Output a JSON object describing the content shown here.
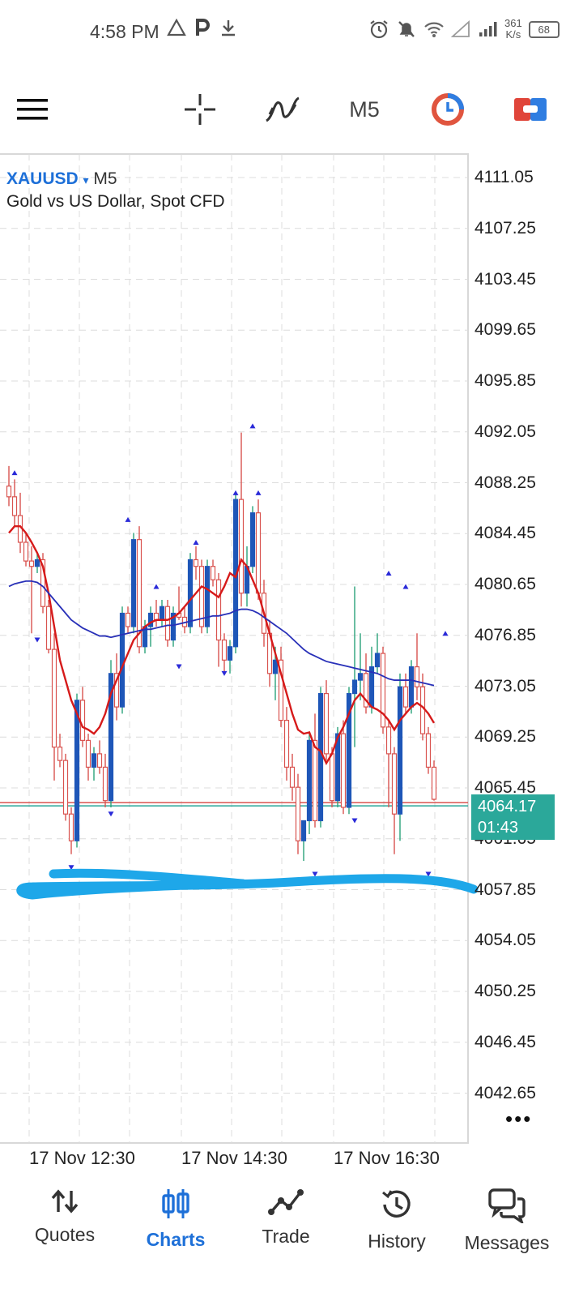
{
  "status_bar": {
    "time": "4:58 PM",
    "icons_left": [
      "warning-triangle-icon",
      "p-letter-icon",
      "download-icon"
    ],
    "icons_right": [
      "alarm-icon",
      "muted-bell-icon",
      "wifi-icon",
      "no-signal-icon",
      "signal-icon"
    ],
    "speed_value": "361",
    "speed_unit": "K/s",
    "battery": "68"
  },
  "toolbar": {
    "menu_icon": "hamburger-menu-icon",
    "crosshair_icon": "crosshair-icon",
    "indicators_icon": "indicators-icon",
    "timeframe": "M5",
    "objects_icon": "clock-objects-icon",
    "trade_icon": "one-click-trade-icon"
  },
  "chart": {
    "symbol": "XAUUSD",
    "symbol_dropdown": "▾",
    "timeframe": "M5",
    "description": "Gold vs US Dollar, Spot CFD",
    "price_labels": [
      "4111.05",
      "4107.25",
      "4103.45",
      "4099.65",
      "4095.85",
      "4092.05",
      "4088.25",
      "4084.45",
      "4080.65",
      "4076.85",
      "4073.05",
      "4069.25",
      "4065.45",
      "4061.65",
      "4057.85",
      "4054.05",
      "4050.25",
      "4046.45",
      "4042.65"
    ],
    "time_labels": [
      "17 Nov 12:30",
      "17 Nov 14:30",
      "17 Nov 16:30"
    ],
    "current_price": "4064.17",
    "countdown": "01:43",
    "more_icon": "more-dots-icon",
    "colors": {
      "bull": "#1e56b8",
      "bear": "#d9534f",
      "fast_ma": "#d61a1a",
      "slow_ma": "#2830b8",
      "current_box": "#2ba89a",
      "annotation": "#1ea7e9",
      "arrow": "#2a2ad8"
    }
  },
  "chart_data": {
    "type": "candlestick",
    "y_range": [
      4040.75,
      4112.95
    ],
    "y_ticks": [
      4111.05,
      4107.25,
      4103.45,
      4099.65,
      4095.85,
      4092.05,
      4088.25,
      4084.45,
      4080.65,
      4076.85,
      4073.05,
      4069.25,
      4065.45,
      4061.65,
      4057.85,
      4054.05,
      4050.25,
      4046.45,
      4042.65
    ],
    "x_tick_labels": [
      "17 Nov 12:30",
      "17 Nov 14:30",
      "17 Nov 16:30"
    ],
    "current_price": 4064.17,
    "candles": [
      [
        4088.0,
        4089.5,
        4086.5,
        4087.2
      ],
      [
        4087.2,
        4088.5,
        4085.0,
        4085.8
      ],
      [
        4085.8,
        4087.5,
        4083.0,
        4083.8
      ],
      [
        4083.8,
        4084.5,
        4082.0,
        4082.4
      ],
      [
        4082.4,
        4083.5,
        4077.0,
        4082.0
      ],
      [
        4082.0,
        4083.0,
        4081.5,
        4082.5
      ],
      [
        4082.5,
        4083.0,
        4078.5,
        4079.0
      ],
      [
        4079.0,
        4079.5,
        4075.5,
        4075.8
      ],
      [
        4075.8,
        4077.0,
        4066.0,
        4068.5
      ],
      [
        4068.5,
        4069.5,
        4067.0,
        4067.5
      ],
      [
        4067.5,
        4068.0,
        4063.0,
        4063.5
      ],
      [
        4063.5,
        4064.0,
        4060.5,
        4061.5
      ],
      [
        4061.5,
        4072.5,
        4061.0,
        4072.0
      ],
      [
        4072.0,
        4073.0,
        4068.5,
        4069.0
      ],
      [
        4069.0,
        4069.5,
        4066.0,
        4067.0
      ],
      [
        4067.0,
        4068.5,
        4066.0,
        4068.0
      ],
      [
        4068.0,
        4069.0,
        4066.5,
        4067.0
      ],
      [
        4067.0,
        4068.0,
        4064.0,
        4064.5
      ],
      [
        4064.5,
        4075.0,
        4064.0,
        4074.0
      ],
      [
        4074.0,
        4075.5,
        4070.5,
        4071.5
      ],
      [
        4071.5,
        4079.0,
        4071.0,
        4078.5
      ],
      [
        4078.5,
        4079.0,
        4077.0,
        4077.5
      ],
      [
        4077.5,
        4084.5,
        4077.0,
        4084.0
      ],
      [
        4084.0,
        4085.0,
        4075.5,
        4076.0
      ],
      [
        4076.0,
        4078.0,
        4075.5,
        4077.5
      ],
      [
        4077.5,
        4079.0,
        4076.0,
        4078.5
      ],
      [
        4078.5,
        4079.5,
        4077.5,
        4078.0
      ],
      [
        4078.0,
        4079.5,
        4077.5,
        4079.0
      ],
      [
        4079.0,
        4079.5,
        4076.0,
        4076.5
      ],
      [
        4076.5,
        4079.0,
        4076.0,
        4078.5
      ],
      [
        4078.5,
        4080.5,
        4078.0,
        4078.2
      ],
      [
        4078.2,
        4079.0,
        4077.0,
        4077.5
      ],
      [
        4077.5,
        4083.0,
        4077.0,
        4082.5
      ],
      [
        4082.5,
        4083.5,
        4081.0,
        4082.0
      ],
      [
        4082.0,
        4082.5,
        4077.0,
        4077.5
      ],
      [
        4077.5,
        4082.5,
        4077.0,
        4082.0
      ],
      [
        4082.0,
        4082.5,
        4080.5,
        4081.0
      ],
      [
        4081.0,
        4081.5,
        4074.5,
        4076.5
      ],
      [
        4076.5,
        4077.0,
        4074.0,
        4075.0
      ],
      [
        4075.0,
        4076.5,
        4074.0,
        4076.0
      ],
      [
        4076.0,
        4087.5,
        4075.5,
        4087.0
      ],
      [
        4087.0,
        4092.0,
        4079.0,
        4080.0
      ],
      [
        4080.0,
        4083.5,
        4079.0,
        4082.0
      ],
      [
        4082.0,
        4086.5,
        4081.5,
        4086.0
      ],
      [
        4086.0,
        4087.0,
        4079.5,
        4080.0
      ],
      [
        4080.0,
        4081.0,
        4076.0,
        4077.0
      ],
      [
        4077.0,
        4078.0,
        4073.0,
        4074.0
      ],
      [
        4074.0,
        4076.0,
        4072.0,
        4075.0
      ],
      [
        4075.0,
        4076.0,
        4070.0,
        4070.5
      ],
      [
        4070.5,
        4071.5,
        4066.0,
        4067.0
      ],
      [
        4067.0,
        4068.0,
        4064.5,
        4065.5
      ],
      [
        4065.5,
        4066.5,
        4060.5,
        4061.5
      ],
      [
        4061.5,
        4063.0,
        4060.0,
        4063.0
      ],
      [
        4063.0,
        4069.5,
        4062.0,
        4069.0
      ],
      [
        4069.0,
        4071.0,
        4062.5,
        4063.0
      ],
      [
        4063.0,
        4073.0,
        4062.5,
        4072.5
      ],
      [
        4072.5,
        4073.5,
        4067.5,
        4068.0
      ],
      [
        4068.0,
        4068.5,
        4064.0,
        4064.5
      ],
      [
        4064.5,
        4070.0,
        4064.0,
        4069.5
      ],
      [
        4069.5,
        4070.5,
        4063.5,
        4064.0
      ],
      [
        4064.0,
        4073.0,
        4063.5,
        4072.5
      ],
      [
        4072.5,
        4080.5,
        4068.5,
        4073.5
      ],
      [
        4073.5,
        4077.0,
        4072.0,
        4074.0
      ],
      [
        4074.0,
        4075.5,
        4071.0,
        4071.5
      ],
      [
        4071.5,
        4076.0,
        4071.0,
        4074.5
      ],
      [
        4074.5,
        4077.0,
        4074.0,
        4075.5
      ],
      [
        4075.5,
        4076.0,
        4069.5,
        4070.0
      ],
      [
        4070.0,
        4070.5,
        4064.0,
        4068.0
      ],
      [
        4068.0,
        4068.5,
        4060.5,
        4063.5
      ],
      [
        4063.5,
        4074.0,
        4061.5,
        4073.0
      ],
      [
        4073.0,
        4074.0,
        4071.0,
        4071.5
      ],
      [
        4071.5,
        4075.0,
        4071.0,
        4074.5
      ],
      [
        4074.5,
        4077.0,
        4072.0,
        4073.0
      ],
      [
        4073.0,
        4074.0,
        4069.0,
        4069.5
      ],
      [
        4069.5,
        4070.0,
        4066.5,
        4067.0
      ],
      [
        4067.0,
        4067.5,
        4064.5,
        4064.6
      ]
    ],
    "moving_averages": [
      {
        "name": "fast",
        "color": "#d61a1a",
        "values": [
          4084.5,
          4085.0,
          4085.0,
          4084.5,
          4083.8,
          4083.0,
          4082.0,
          4080.0,
          4077.5,
          4075.0,
          4073.5,
          4072.0,
          4071.0,
          4070.0,
          4069.8,
          4069.5,
          4070.0,
          4071.0,
          4072.5,
          4073.5,
          4074.5,
          4075.5,
          4076.5,
          4077.0,
          4077.5,
          4077.8,
          4078.0,
          4078.0,
          4078.0,
          4078.2,
          4078.5,
          4079.0,
          4079.5,
          4080.0,
          4080.5,
          4080.3,
          4080.0,
          4079.7,
          4080.5,
          4081.5,
          4081.2,
          4082.5,
          4082.0,
          4081.0,
          4080.0,
          4078.5,
          4077.0,
          4075.5,
          4074.0,
          4072.5,
          4071.0,
          4069.8,
          4069.5,
          4069.6,
          4068.5,
          4068.2,
          4067.3,
          4068.0,
          4069.2,
          4070.0,
          4071.0,
          4072.0,
          4072.5,
          4072.0,
          4071.5,
          4071.3,
          4071.0,
          4070.5,
          4069.8,
          4070.5,
          4071.0,
          4071.5,
          4071.8,
          4071.5,
          4071.0,
          4070.3
        ]
      },
      {
        "name": "slow",
        "color": "#2830b8",
        "values": [
          4080.5,
          4080.7,
          4080.8,
          4080.9,
          4080.9,
          4080.8,
          4080.5,
          4080.0,
          4079.5,
          4079.0,
          4078.5,
          4078.0,
          4077.7,
          4077.4,
          4077.2,
          4077.0,
          4076.8,
          4076.8,
          4076.7,
          4076.8,
          4076.9,
          4077.0,
          4077.1,
          4077.2,
          4077.3,
          4077.3,
          4077.4,
          4077.5,
          4077.6,
          4077.6,
          4077.7,
          4077.8,
          4077.9,
          4078.0,
          4078.1,
          4078.2,
          4078.3,
          4078.3,
          4078.4,
          4078.5,
          4078.7,
          4078.8,
          4078.8,
          4078.7,
          4078.5,
          4078.2,
          4077.9,
          4077.6,
          4077.3,
          4077.0,
          4076.6,
          4076.2,
          4075.8,
          4075.5,
          4075.3,
          4075.1,
          4074.9,
          4074.8,
          4074.7,
          4074.6,
          4074.5,
          4074.4,
          4074.3,
          4074.2,
          4074.1,
          4074.0,
          4073.8,
          4073.6,
          4073.5,
          4073.5,
          4073.5,
          4073.5,
          4073.4,
          4073.3,
          4073.2,
          4073.1
        ]
      }
    ],
    "arrows_up": [
      [
        1,
        4089.0
      ],
      [
        21,
        4085.5
      ],
      [
        26,
        4080.5
      ],
      [
        33,
        4083.8
      ],
      [
        40,
        4087.5
      ],
      [
        43,
        4092.5
      ],
      [
        44,
        4087.5
      ],
      [
        67,
        4081.5
      ],
      [
        70,
        4080.5
      ],
      [
        77,
        4077.0
      ]
    ],
    "arrows_down": [
      [
        5,
        4076.5
      ],
      [
        11,
        4059.5
      ],
      [
        18,
        4063.5
      ],
      [
        30,
        4074.5
      ],
      [
        38,
        4074.0
      ],
      [
        54,
        4059.0
      ],
      [
        61,
        4063.0
      ],
      [
        74,
        4059.0
      ]
    ]
  },
  "bottom_nav": {
    "items": [
      {
        "label": "Quotes",
        "icon": "quotes-arrows-icon",
        "active": false
      },
      {
        "label": "Charts",
        "icon": "candles-chart-icon",
        "active": true
      },
      {
        "label": "Trade",
        "icon": "trade-line-icon",
        "active": false
      },
      {
        "label": "History",
        "icon": "history-clock-icon",
        "active": false
      },
      {
        "label": "Messages",
        "icon": "messages-bubbles-icon",
        "active": false
      }
    ]
  }
}
